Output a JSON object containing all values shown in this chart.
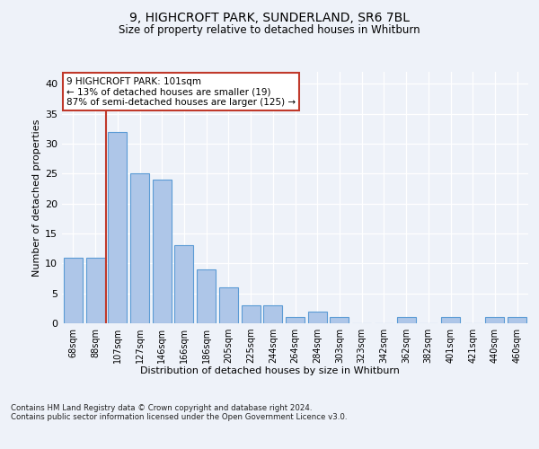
{
  "title_line1": "9, HIGHCROFT PARK, SUNDERLAND, SR6 7BL",
  "title_line2": "Size of property relative to detached houses in Whitburn",
  "xlabel": "Distribution of detached houses by size in Whitburn",
  "ylabel": "Number of detached properties",
  "categories": [
    "68sqm",
    "88sqm",
    "107sqm",
    "127sqm",
    "146sqm",
    "166sqm",
    "186sqm",
    "205sqm",
    "225sqm",
    "244sqm",
    "264sqm",
    "284sqm",
    "303sqm",
    "323sqm",
    "342sqm",
    "362sqm",
    "382sqm",
    "401sqm",
    "421sqm",
    "440sqm",
    "460sqm"
  ],
  "values": [
    11,
    11,
    32,
    25,
    24,
    13,
    9,
    6,
    3,
    3,
    1,
    2,
    1,
    0,
    0,
    1,
    0,
    1,
    0,
    1,
    1
  ],
  "bar_color": "#aec6e8",
  "bar_edge_color": "#5b9bd5",
  "vline_color": "#c0392b",
  "annotation_text": "9 HIGHCROFT PARK: 101sqm\n← 13% of detached houses are smaller (19)\n87% of semi-detached houses are larger (125) →",
  "annotation_box_color": "#ffffff",
  "annotation_box_edge_color": "#c0392b",
  "ylim": [
    0,
    42
  ],
  "yticks": [
    0,
    5,
    10,
    15,
    20,
    25,
    30,
    35,
    40
  ],
  "footer": "Contains HM Land Registry data © Crown copyright and database right 2024.\nContains public sector information licensed under the Open Government Licence v3.0.",
  "background_color": "#eef2f9",
  "plot_bg_color": "#eef2f9"
}
